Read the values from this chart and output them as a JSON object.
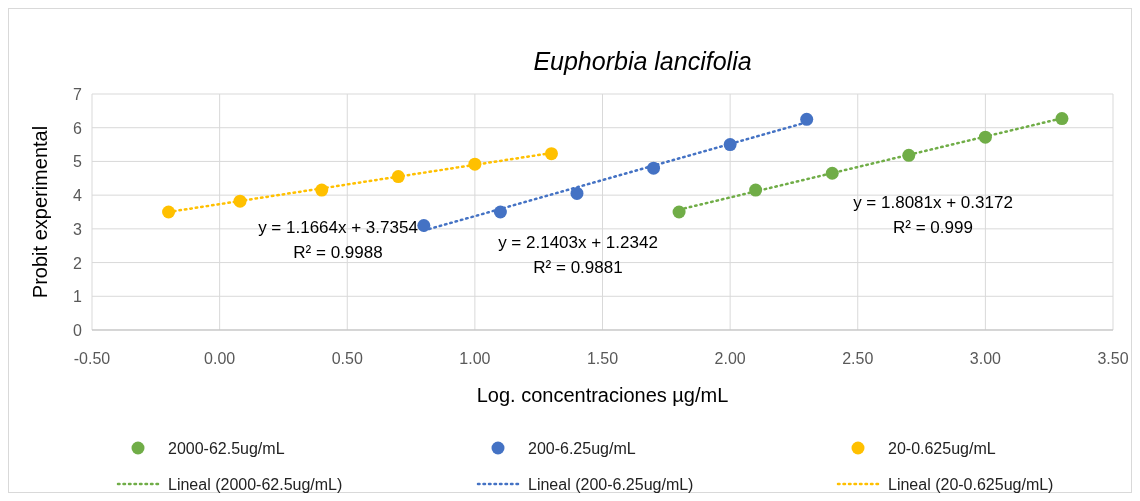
{
  "chart_data": {
    "type": "scatter",
    "title": "Euphorbia lancifolia",
    "xlabel": "Log. concentraciones µg/mL",
    "ylabel": "Probit experimental",
    "xlim": [
      -0.5,
      3.5
    ],
    "xticks": [
      {
        "value": -0.5,
        "label": "-0.50"
      },
      {
        "value": 0,
        "label": "0.00"
      },
      {
        "value": 0.5,
        "label": "0.50"
      },
      {
        "value": 1,
        "label": "1.00"
      },
      {
        "value": 1.5,
        "label": "1.50"
      },
      {
        "value": 2,
        "label": "2.00"
      },
      {
        "value": 2.5,
        "label": "2.50"
      },
      {
        "value": 3,
        "label": "3.00"
      },
      {
        "value": 3.5,
        "label": "3.50"
      }
    ],
    "ylim": [
      0,
      7
    ],
    "yticks": [
      0,
      1,
      2,
      3,
      4,
      5,
      6,
      7
    ],
    "grid": true,
    "legend": "bottom",
    "marker": "circle",
    "series": [
      {
        "name": "2000-62.5ug/mL",
        "color": "#70ad47",
        "x": [
          1.8,
          2.1,
          2.4,
          2.7,
          3.0,
          3.3
        ],
        "values": [
          3.5,
          4.15,
          4.65,
          5.18,
          5.72,
          6.27
        ]
      },
      {
        "name": "200-6.25ug/mL",
        "color": "#4472c4",
        "x": [
          0.8,
          1.1,
          1.4,
          1.7,
          2.0,
          2.3
        ],
        "values": [
          3.1,
          3.5,
          4.05,
          4.8,
          5.5,
          6.25
        ]
      },
      {
        "name": "20-0.625ug/mL",
        "color": "#ffc000",
        "x": [
          -0.2,
          0.08,
          0.4,
          0.7,
          1.0,
          1.3
        ],
        "values": [
          3.5,
          3.82,
          4.15,
          4.55,
          4.92,
          5.23
        ]
      },
      {
        "name": "Lineal (2000-62.5ug/mL)",
        "type": "line",
        "line_style": "dotted",
        "color": "#70ad47",
        "x": [
          1.8,
          3.3
        ],
        "values": [
          3.57,
          6.28
        ],
        "marker": "none"
      },
      {
        "name": "Lineal (200-6.25ug/mL)",
        "type": "line",
        "line_style": "dotted",
        "color": "#4472c4",
        "x": [
          0.8,
          2.3
        ],
        "values": [
          2.95,
          6.16
        ],
        "marker": "none"
      },
      {
        "name": "Lineal (20-0.625ug/mL)",
        "type": "line",
        "line_style": "dotted",
        "color": "#ffc000",
        "x": [
          -0.2,
          1.3
        ],
        "values": [
          3.5,
          5.25
        ],
        "marker": "none"
      }
    ],
    "annotations": [
      "y = 1.1664x + 3.7354",
      "R² = 0.9988",
      "y = 2.1403x + 1.2342",
      "R² = 0.9881",
      "y = 1.8081x + 0.3172",
      "R² = 0.999"
    ]
  }
}
